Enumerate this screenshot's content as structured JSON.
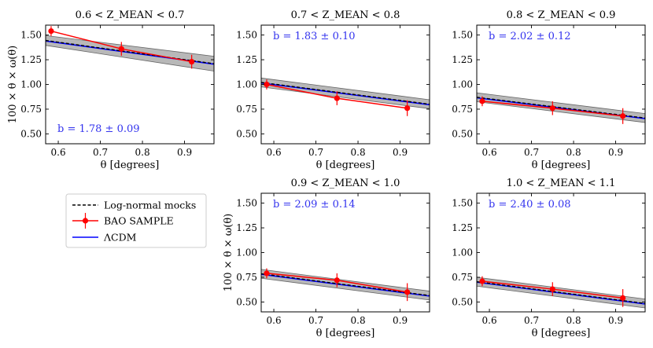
{
  "figure": {
    "x_axis_label": "θ [degrees]",
    "y_axis_label": "100 × θ × ω(θ)"
  },
  "legend": {
    "entries": [
      {
        "label": "Log-normal mocks",
        "style": "dashed",
        "color": "#000000"
      },
      {
        "label": "BAO SAMPLE",
        "style": "errorbar",
        "color": "#ff0000"
      },
      {
        "label": "ΛCDM",
        "style": "solid",
        "color": "#0000ff"
      }
    ]
  },
  "colors": {
    "model": "#0000ff",
    "data": "#ff0000",
    "band": "#a0a0a0",
    "annotation": "#3333ee"
  },
  "chart_data": [
    {
      "type": "line",
      "panel": "top-left",
      "show_ylabel": true,
      "title": "0.6 < Z_MEAN < 0.7",
      "xlabel": "θ [degrees]",
      "ylabel": "100 × θ × ω(θ)",
      "xlim": [
        0.57,
        0.97
      ],
      "ylim": [
        0.4,
        1.6
      ],
      "xticks": [
        0.6,
        0.7,
        0.8,
        0.9
      ],
      "xtick_labels": [
        "0.6",
        "0.7",
        "0.8",
        "0.9"
      ],
      "yticks": [
        0.5,
        0.75,
        1.0,
        1.25,
        1.5
      ],
      "ytick_labels": [
        "0.50",
        "0.75",
        "1.00",
        "1.25",
        "1.50"
      ],
      "bias_annotation": "b = 1.78 ± 0.09",
      "annotation_position": "bottom-left",
      "mocks": {
        "x": [
          0.57,
          0.97
        ],
        "y": [
          1.445,
          1.21
        ]
      },
      "band": {
        "x": [
          0.57,
          0.97
        ],
        "lower": [
          1.395,
          1.135
        ],
        "upper": [
          1.495,
          1.285
        ]
      },
      "lcdm": {
        "x": [
          0.57,
          0.97
        ],
        "y": [
          1.44,
          1.205
        ]
      },
      "data": {
        "x": [
          0.583,
          0.75,
          0.917
        ],
        "y": [
          1.54,
          1.36,
          1.23
        ],
        "err": [
          0.05,
          0.07,
          0.07
        ]
      }
    },
    {
      "type": "line",
      "panel": "top-middle",
      "show_ylabel": false,
      "title": "0.7 < Z_MEAN < 0.8",
      "xlabel": "θ [degrees]",
      "ylabel": "",
      "xlim": [
        0.57,
        0.97
      ],
      "ylim": [
        0.4,
        1.6
      ],
      "xticks": [
        0.6,
        0.7,
        0.8,
        0.9
      ],
      "xtick_labels": [
        "0.6",
        "0.7",
        "0.8",
        "0.9"
      ],
      "yticks": [
        0.5,
        0.75,
        1.0,
        1.25,
        1.5
      ],
      "ytick_labels": [
        "0.50",
        "0.75",
        "1.00",
        "1.25",
        "1.50"
      ],
      "bias_annotation": "b = 1.83 ± 0.10",
      "annotation_position": "top-left",
      "mocks": {
        "x": [
          0.57,
          0.97
        ],
        "y": [
          1.02,
          0.8
        ]
      },
      "band": {
        "x": [
          0.57,
          0.97
        ],
        "lower": [
          0.975,
          0.755
        ],
        "upper": [
          1.065,
          0.845
        ]
      },
      "lcdm": {
        "x": [
          0.57,
          0.97
        ],
        "y": [
          1.015,
          0.795
        ]
      },
      "data": {
        "x": [
          0.583,
          0.75,
          0.917
        ],
        "y": [
          1.0,
          0.86,
          0.76
        ],
        "err": [
          0.05,
          0.07,
          0.08
        ]
      }
    },
    {
      "type": "line",
      "panel": "top-right",
      "show_ylabel": false,
      "title": "0.8 < Z_MEAN < 0.9",
      "xlabel": "θ [degrees]",
      "ylabel": "",
      "xlim": [
        0.57,
        0.97
      ],
      "ylim": [
        0.4,
        1.6
      ],
      "xticks": [
        0.6,
        0.7,
        0.8,
        0.9
      ],
      "xtick_labels": [
        "0.6",
        "0.7",
        "0.8",
        "0.9"
      ],
      "yticks": [
        0.5,
        0.75,
        1.0,
        1.25,
        1.5
      ],
      "ytick_labels": [
        "0.50",
        "0.75",
        "1.00",
        "1.25",
        "1.50"
      ],
      "bias_annotation": "b = 2.02 ± 0.12",
      "annotation_position": "top-left",
      "mocks": {
        "x": [
          0.57,
          0.97
        ],
        "y": [
          0.87,
          0.66
        ]
      },
      "band": {
        "x": [
          0.57,
          0.97
        ],
        "lower": [
          0.825,
          0.615
        ],
        "upper": [
          0.915,
          0.705
        ]
      },
      "lcdm": {
        "x": [
          0.57,
          0.97
        ],
        "y": [
          0.865,
          0.655
        ]
      },
      "data": {
        "x": [
          0.583,
          0.75,
          0.917
        ],
        "y": [
          0.83,
          0.76,
          0.68
        ],
        "err": [
          0.05,
          0.07,
          0.08
        ]
      }
    },
    {
      "type": "line",
      "panel": "bottom-middle",
      "show_ylabel": true,
      "title": "0.9 < Z_MEAN < 1.0",
      "xlabel": "θ [degrees]",
      "ylabel": "100 × θ × ω(θ)",
      "xlim": [
        0.57,
        0.97
      ],
      "ylim": [
        0.4,
        1.6
      ],
      "xticks": [
        0.6,
        0.7,
        0.8,
        0.9
      ],
      "xtick_labels": [
        "0.6",
        "0.7",
        "0.8",
        "0.9"
      ],
      "yticks": [
        0.5,
        0.75,
        1.0,
        1.25,
        1.5
      ],
      "ytick_labels": [
        "0.50",
        "0.75",
        "1.00",
        "1.25",
        "1.50"
      ],
      "bias_annotation": "b = 2.09 ± 0.14",
      "annotation_position": "top-left",
      "mocks": {
        "x": [
          0.57,
          0.97
        ],
        "y": [
          0.785,
          0.565
        ]
      },
      "band": {
        "x": [
          0.57,
          0.97
        ],
        "lower": [
          0.74,
          0.52
        ],
        "upper": [
          0.83,
          0.61
        ]
      },
      "lcdm": {
        "x": [
          0.57,
          0.97
        ],
        "y": [
          0.78,
          0.56
        ]
      },
      "data": {
        "x": [
          0.583,
          0.75,
          0.917
        ],
        "y": [
          0.79,
          0.72,
          0.6
        ],
        "err": [
          0.05,
          0.07,
          0.09
        ]
      }
    },
    {
      "type": "line",
      "panel": "bottom-right",
      "show_ylabel": false,
      "title": "1.0 < Z_MEAN < 1.1",
      "xlabel": "θ [degrees]",
      "ylabel": "",
      "xlim": [
        0.57,
        0.97
      ],
      "ylim": [
        0.4,
        1.6
      ],
      "xticks": [
        0.6,
        0.7,
        0.8,
        0.9
      ],
      "xtick_labels": [
        "0.6",
        "0.7",
        "0.8",
        "0.9"
      ],
      "yticks": [
        0.5,
        0.75,
        1.0,
        1.25,
        1.5
      ],
      "ytick_labels": [
        "0.50",
        "0.75",
        "1.00",
        "1.25",
        "1.50"
      ],
      "bias_annotation": "b = 2.40 ± 0.08",
      "annotation_position": "top-left",
      "mocks": {
        "x": [
          0.57,
          0.97
        ],
        "y": [
          0.705,
          0.485
        ]
      },
      "band": {
        "x": [
          0.57,
          0.97
        ],
        "lower": [
          0.66,
          0.44
        ],
        "upper": [
          0.75,
          0.53
        ]
      },
      "lcdm": {
        "x": [
          0.57,
          0.97
        ],
        "y": [
          0.7,
          0.48
        ]
      },
      "data": {
        "x": [
          0.583,
          0.75,
          0.917
        ],
        "y": [
          0.71,
          0.63,
          0.54
        ],
        "err": [
          0.05,
          0.07,
          0.09
        ]
      }
    }
  ]
}
